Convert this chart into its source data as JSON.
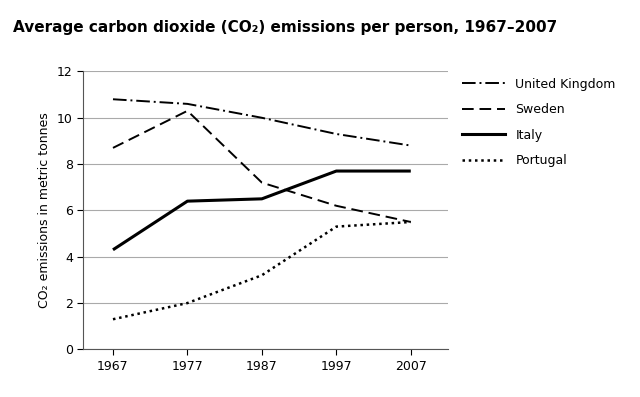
{
  "title": "Average carbon dioxide (CO₂) emissions per person, 1967–2007",
  "ylabel": "CO₂ emissions in metric tonnes",
  "years": [
    1967,
    1977,
    1987,
    1997,
    2007
  ],
  "series": {
    "United Kingdom": {
      "values": [
        10.8,
        10.6,
        10.0,
        9.3,
        8.8
      ],
      "linestyle": "dashdot",
      "linewidth": 1.4,
      "color": "#000000"
    },
    "Sweden": {
      "values": [
        8.7,
        10.3,
        7.2,
        6.2,
        5.5
      ],
      "linestyle": "dashed",
      "linewidth": 1.4,
      "color": "#000000"
    },
    "Italy": {
      "values": [
        4.3,
        6.4,
        6.5,
        7.7,
        7.7
      ],
      "linestyle": "solid",
      "linewidth": 2.2,
      "color": "#000000"
    },
    "Portugal": {
      "values": [
        1.3,
        2.0,
        3.2,
        5.3,
        5.5
      ],
      "linestyle": "dotted",
      "linewidth": 1.8,
      "color": "#000000"
    }
  },
  "xlim": [
    1963,
    2012
  ],
  "ylim": [
    0,
    12
  ],
  "yticks": [
    0,
    2,
    4,
    6,
    8,
    10,
    12
  ],
  "xticks": [
    1967,
    1977,
    1987,
    1997,
    2007
  ],
  "grid_color": "#aaaaaa",
  "background_color": "#ffffff",
  "title_fontsize": 11,
  "label_fontsize": 9,
  "tick_fontsize": 9,
  "legend_fontsize": 9
}
